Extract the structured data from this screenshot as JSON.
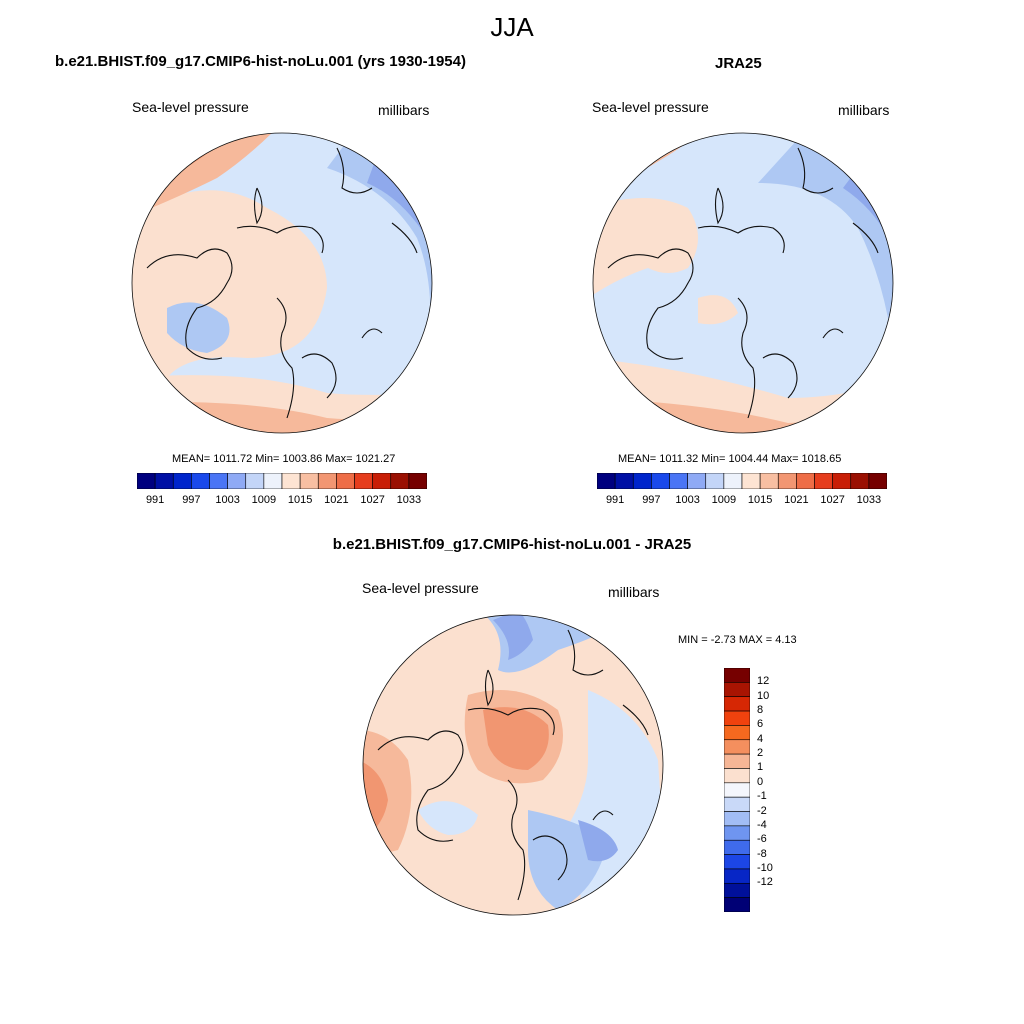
{
  "title": "JJA",
  "colors": {
    "ocean_blue_dark": "#8fa9ec",
    "land_blue": "#aec8f3",
    "light_blue": "#d6e6fb",
    "near_white": "#fdfbf6",
    "peach": "#fbe0cf",
    "salmon": "#f6b99b",
    "orange": "#f19671",
    "deep_orange": "#e8774e",
    "coastline": "#111111"
  },
  "panels": [
    {
      "id": "model",
      "title": "b.e21.BHIST.f09_g17.CMIP6-hist-noLu.001 (yrs 1930-1954)",
      "left_label": "Sea-level pressure",
      "right_label": "millibars",
      "stats": "MEAN= 1011.72  Min= 1003.86  Max= 1021.27",
      "mean": 1011.72,
      "min": 1003.86,
      "max": 1021.27
    },
    {
      "id": "obs",
      "title": "JRA25",
      "left_label": "Sea-level pressure",
      "right_label": "millibars",
      "stats": "MEAN= 1011.32  Min= 1004.44  Max= 1018.65",
      "mean": 1011.32,
      "min": 1004.44,
      "max": 1018.65
    },
    {
      "id": "diff",
      "title": "b.e21.BHIST.f09_g17.CMIP6-hist-noLu.001 - JRA25",
      "left_label": "Sea-level pressure",
      "right_label": "millibars",
      "stats": "MIN =  -2.73 MAX =   4.13",
      "min": -2.73,
      "max": 4.13
    }
  ],
  "colorbar_abs": {
    "colors": [
      "#00007f",
      "#0010a5",
      "#0025cc",
      "#1a49eb",
      "#4a75f5",
      "#8faaf5",
      "#c3d5f8",
      "#edf2fb",
      "#fde4d3",
      "#f8bfa2",
      "#f29672",
      "#ee6d47",
      "#e63d1d",
      "#c81e06",
      "#9a1002",
      "#760000"
    ],
    "tick_labels": [
      "991",
      "997",
      "1003",
      "1009",
      "1015",
      "1021",
      "1027",
      "1033"
    ]
  },
  "colorbar_diff": {
    "colors_top_to_bottom": [
      "#760000",
      "#a81402",
      "#d62704",
      "#f0420e",
      "#f5691f",
      "#f48f5e",
      "#f6b696",
      "#fbe0cf",
      "#f4f6fc",
      "#c9d9f8",
      "#a2bdf5",
      "#6f95f0",
      "#3f6bec",
      "#1c46e6",
      "#0726c6",
      "#00109a",
      "#000075"
    ],
    "tick_labels": [
      "12",
      "10",
      "8",
      "6",
      "4",
      "2",
      "1",
      "0",
      "-1",
      "-2",
      "-4",
      "-6",
      "-8",
      "-10",
      "-12"
    ]
  }
}
